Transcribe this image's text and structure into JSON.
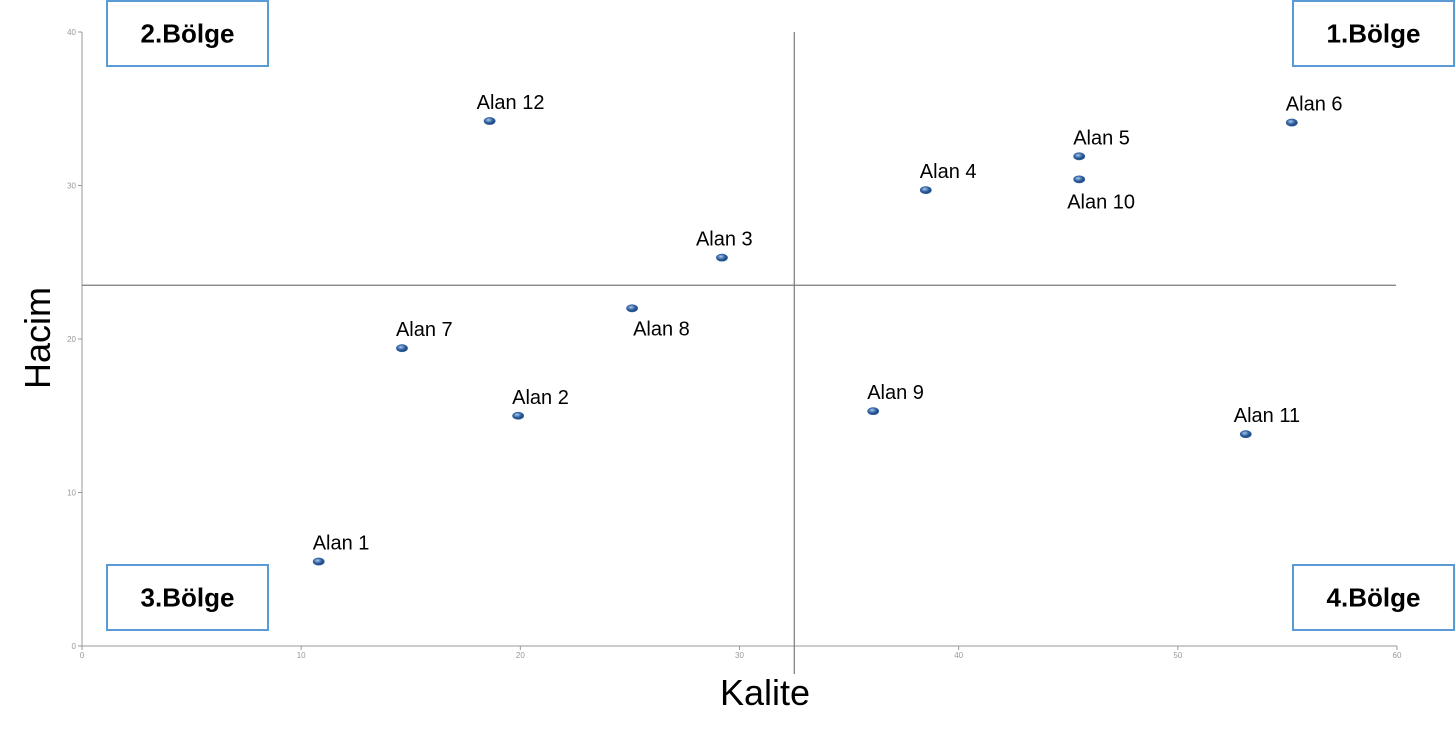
{
  "chart_data": {
    "type": "scatter",
    "title": "",
    "xlabel": "Kalite",
    "ylabel": "Hacim",
    "xlim": [
      0,
      60
    ],
    "ylim": [
      0,
      40
    ],
    "xticks": [
      0,
      10,
      20,
      30,
      40,
      50,
      60
    ],
    "yticks": [
      0,
      10,
      20,
      30,
      40
    ],
    "grid": false,
    "quadrant_lines": {
      "x": 32.5,
      "y": 23.5
    },
    "points": [
      {
        "label": "Alan 1",
        "x": 10.8,
        "y": 5.5
      },
      {
        "label": "Alan 2",
        "x": 19.9,
        "y": 15.0
      },
      {
        "label": "Alan 3",
        "x": 29.2,
        "y": 25.3
      },
      {
        "label": "Alan 4",
        "x": 38.5,
        "y": 29.7
      },
      {
        "label": "Alan 5",
        "x": 45.5,
        "y": 31.9
      },
      {
        "label": "Alan 6",
        "x": 55.2,
        "y": 34.1
      },
      {
        "label": "Alan 7",
        "x": 14.6,
        "y": 19.4
      },
      {
        "label": "Alan 8",
        "x": 25.1,
        "y": 22.0
      },
      {
        "label": "Alan 9",
        "x": 36.1,
        "y": 15.3
      },
      {
        "label": "Alan 10",
        "x": 45.5,
        "y": 30.4
      },
      {
        "label": "Alan 11",
        "x": 53.1,
        "y": 13.8
      },
      {
        "label": "Alan 12",
        "x": 18.6,
        "y": 34.2
      }
    ],
    "regions": [
      {
        "label": "1.Bölge",
        "position": "top-right"
      },
      {
        "label": "2.Bölge",
        "position": "top-left"
      },
      {
        "label": "3.Bölge",
        "position": "bottom-left"
      },
      {
        "label": "4.Bölge",
        "position": "bottom-right"
      }
    ],
    "colors": {
      "point": "#2e5f9e",
      "axis": "#9a9a9a",
      "quadrant_line": "#7a7a7a",
      "region_border": "#5b9bd5"
    }
  }
}
